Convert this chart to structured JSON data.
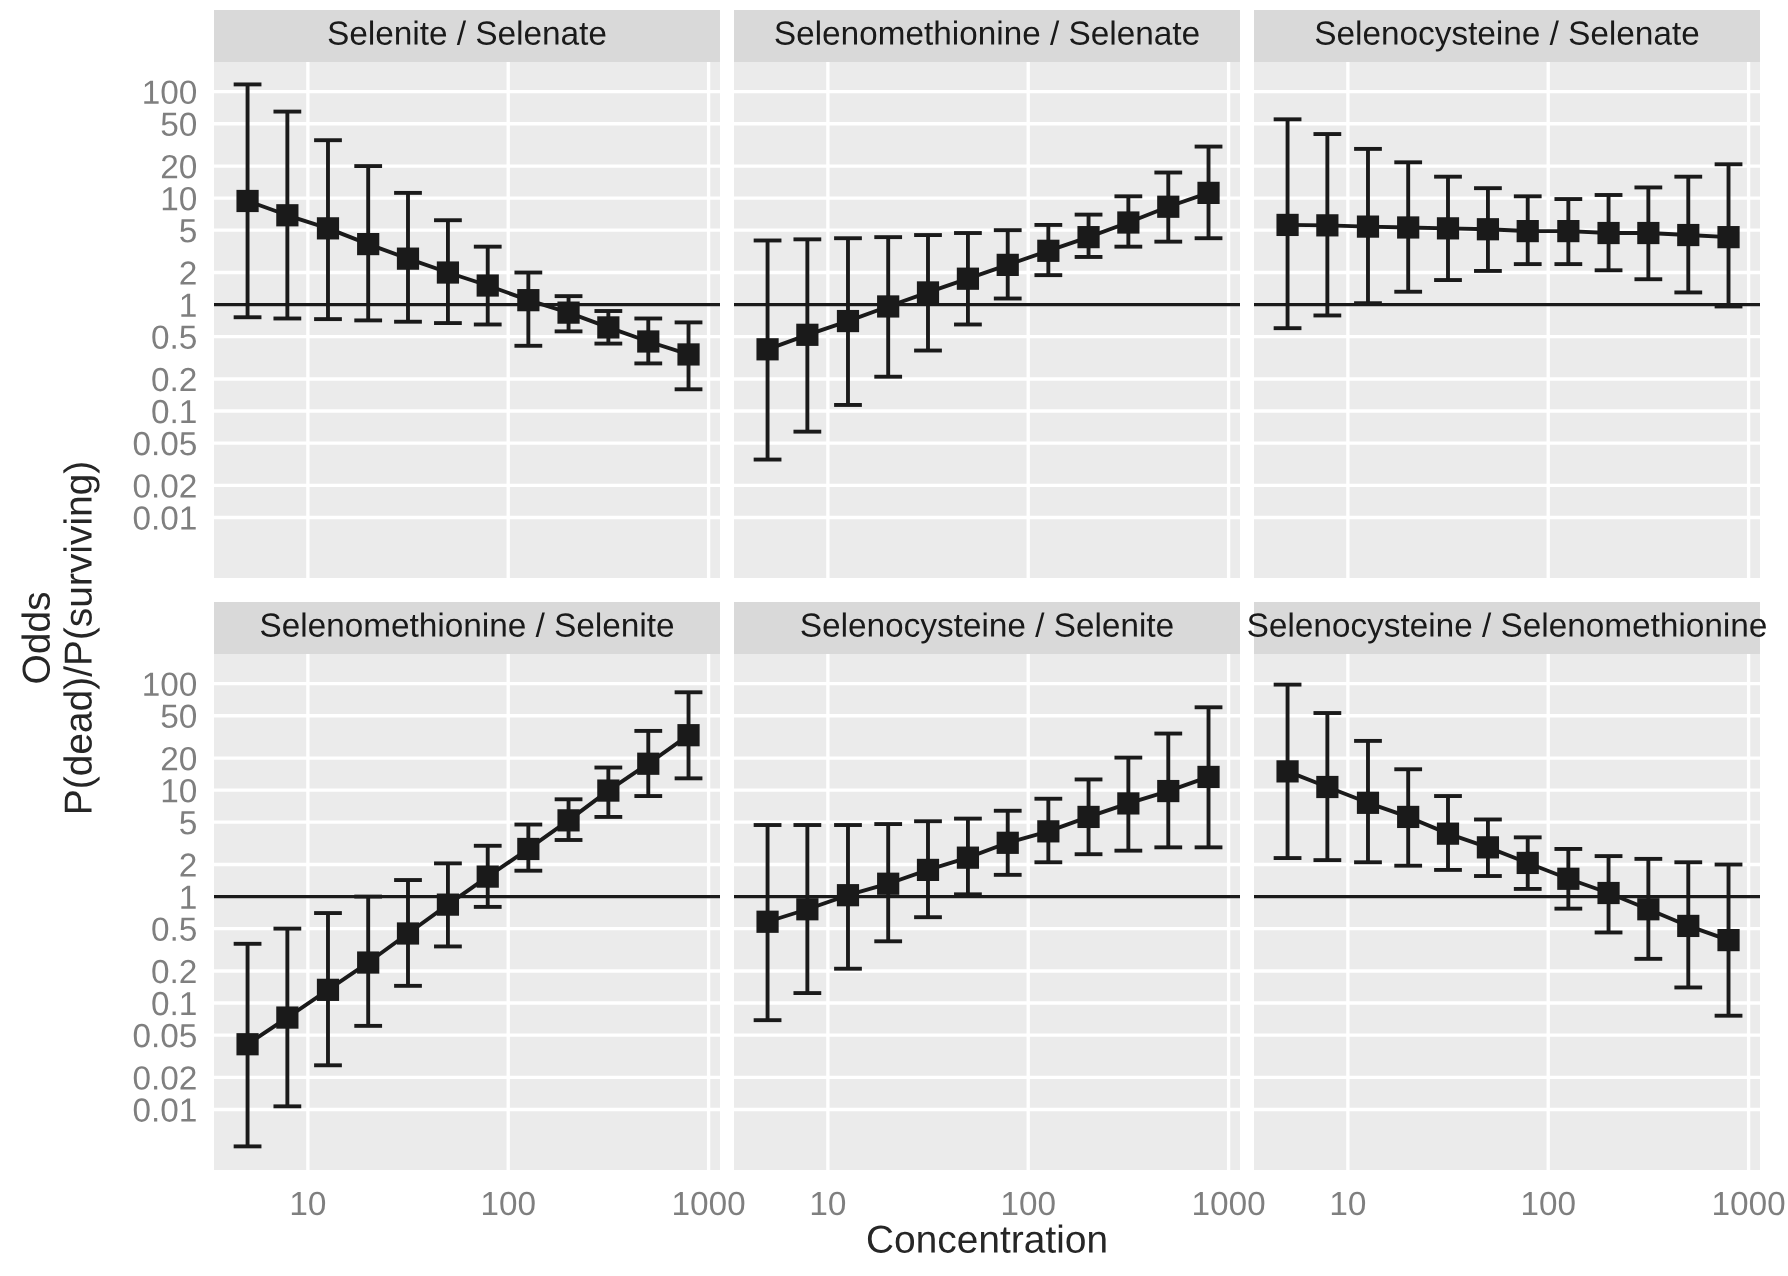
{
  "chart_data": [
    {
      "type": "line",
      "title": "Selenite / Selenate",
      "ylabel": "Odds\nP(dead)/P(surviving)",
      "xlabel": "Concentration",
      "log": "xy",
      "grid": true,
      "marker": "square",
      "line_style": "solid",
      "tick_labels": "y",
      "xlim": [
        3.4,
        1140
      ],
      "ylim": [
        0.0027,
        190
      ],
      "xticks": [
        10,
        100,
        1000
      ],
      "yticks": [
        0.01,
        0.02,
        0.05,
        0.1,
        0.2,
        0.5,
        1,
        2,
        5,
        10,
        20,
        50,
        100
      ],
      "x": [
        5,
        7.9,
        12.6,
        20,
        31.6,
        50,
        79,
        126,
        200,
        316,
        500,
        794
      ],
      "series": [
        {
          "color": "#1a1a1a",
          "values": [
            9.4,
            6.9,
            5.2,
            3.7,
            2.7,
            2.0,
            1.51,
            1.1,
            0.84,
            0.61,
            0.45,
            0.34
          ],
          "errors": [
            [
              0.76,
              117
            ],
            [
              0.74,
              65
            ],
            [
              0.73,
              35
            ],
            [
              0.71,
              20
            ],
            [
              0.69,
              11.2
            ],
            [
              0.67,
              6.2
            ],
            [
              0.65,
              3.5
            ],
            [
              0.41,
              2.0
            ],
            [
              0.56,
              1.2
            ],
            [
              0.43,
              0.87
            ],
            [
              0.28,
              0.74
            ],
            [
              0.16,
              0.68
            ]
          ]
        }
      ],
      "ref_lines": [
        {
          "axis": "y",
          "value": 1,
          "color": "#1a1a1a"
        }
      ]
    },
    {
      "type": "line",
      "title": "Selenomethionine / Selenate",
      "log": "xy",
      "grid": true,
      "marker": "square",
      "line_style": "solid",
      "tick_labels": false,
      "xlim": [
        3.4,
        1140
      ],
      "ylim": [
        0.0027,
        190
      ],
      "xticks": [
        10,
        100,
        1000
      ],
      "yticks": [
        0.01,
        0.02,
        0.05,
        0.1,
        0.2,
        0.5,
        1,
        2,
        5,
        10,
        20,
        50,
        100
      ],
      "x": [
        5,
        7.9,
        12.6,
        20,
        31.6,
        50,
        79,
        126,
        200,
        316,
        500,
        794
      ],
      "series": [
        {
          "color": "#1a1a1a",
          "values": [
            0.38,
            0.52,
            0.7,
            0.96,
            1.3,
            1.75,
            2.36,
            3.2,
            4.3,
            5.9,
            8.3,
            11.2
          ],
          "errors": [
            [
              0.035,
              4.0
            ],
            [
              0.064,
              4.1
            ],
            [
              0.114,
              4.2
            ],
            [
              0.21,
              4.3
            ],
            [
              0.37,
              4.5
            ],
            [
              0.65,
              4.7
            ],
            [
              1.14,
              5.0
            ],
            [
              1.89,
              5.6
            ],
            [
              2.8,
              7.0
            ],
            [
              3.5,
              10.4
            ],
            [
              3.9,
              17.4
            ],
            [
              4.2,
              30.5
            ]
          ]
        }
      ],
      "ref_lines": [
        {
          "axis": "y",
          "value": 1,
          "color": "#1a1a1a"
        }
      ]
    },
    {
      "type": "line",
      "title": "Selenocysteine / Selenate",
      "log": "xy",
      "grid": true,
      "marker": "square",
      "line_style": "solid",
      "tick_labels": false,
      "xlim": [
        3.4,
        1140
      ],
      "ylim": [
        0.0027,
        190
      ],
      "xticks": [
        10,
        100,
        1000
      ],
      "yticks": [
        0.01,
        0.02,
        0.05,
        0.1,
        0.2,
        0.5,
        1,
        2,
        5,
        10,
        20,
        50,
        100
      ],
      "x": [
        5,
        7.9,
        12.6,
        20,
        31.6,
        50,
        79,
        126,
        200,
        316,
        500,
        794
      ],
      "series": [
        {
          "color": "#1a1a1a",
          "values": [
            5.6,
            5.55,
            5.4,
            5.3,
            5.2,
            5.1,
            4.9,
            4.9,
            4.7,
            4.7,
            4.5,
            4.3
          ],
          "errors": [
            [
              0.6,
              55
            ],
            [
              0.79,
              40
            ],
            [
              1.03,
              29
            ],
            [
              1.32,
              21.7
            ],
            [
              1.7,
              15.9
            ],
            [
              2.07,
              12.4
            ],
            [
              2.4,
              10.4
            ],
            [
              2.4,
              9.8
            ],
            [
              2.1,
              10.7
            ],
            [
              1.73,
              12.6
            ],
            [
              1.3,
              15.9
            ],
            [
              0.96,
              20.8
            ]
          ]
        }
      ],
      "ref_lines": [
        {
          "axis": "y",
          "value": 1,
          "color": "#1a1a1a"
        }
      ]
    },
    {
      "type": "line",
      "title": "Selenomethionine / Selenite",
      "log": "xy",
      "grid": true,
      "marker": "square",
      "line_style": "solid",
      "xlim": [
        3.4,
        1140
      ],
      "ylim": [
        0.0027,
        190
      ],
      "xticks": [
        10,
        100,
        1000
      ],
      "yticks": [
        0.01,
        0.02,
        0.05,
        0.1,
        0.2,
        0.5,
        1,
        2,
        5,
        10,
        20,
        50,
        100
      ],
      "x": [
        5,
        7.9,
        12.6,
        20,
        31.6,
        50,
        79,
        126,
        200,
        316,
        500,
        794
      ],
      "series": [
        {
          "color": "#1a1a1a",
          "values": [
            0.041,
            0.073,
            0.133,
            0.24,
            0.45,
            0.84,
            1.54,
            2.8,
            5.2,
            9.9,
            17.7,
            32.8
          ],
          "errors": [
            [
              0.0045,
              0.36
            ],
            [
              0.0107,
              0.5
            ],
            [
              0.026,
              0.7
            ],
            [
              0.061,
              1.0
            ],
            [
              0.145,
              1.43
            ],
            [
              0.34,
              2.05
            ],
            [
              0.8,
              3.0
            ],
            [
              1.75,
              4.75
            ],
            [
              3.4,
              8.2
            ],
            [
              5.6,
              16.3
            ],
            [
              8.8,
              36
            ],
            [
              12.9,
              83
            ]
          ]
        }
      ],
      "ref_lines": [
        {
          "axis": "y",
          "value": 1,
          "color": "#1a1a1a"
        }
      ]
    },
    {
      "type": "line",
      "title": "Selenocysteine / Selenite",
      "log": "xy",
      "grid": true,
      "marker": "square",
      "line_style": "solid",
      "tick_labels": "x",
      "xlim": [
        3.4,
        1140
      ],
      "ylim": [
        0.0027,
        190
      ],
      "xticks": [
        10,
        100,
        1000
      ],
      "yticks": [
        0.01,
        0.02,
        0.05,
        0.1,
        0.2,
        0.5,
        1,
        2,
        5,
        10,
        20,
        50,
        100
      ],
      "x": [
        5,
        7.9,
        12.6,
        20,
        31.6,
        50,
        79,
        126,
        200,
        316,
        500,
        794
      ],
      "series": [
        {
          "color": "#1a1a1a",
          "values": [
            0.58,
            0.76,
            1.03,
            1.32,
            1.78,
            2.32,
            3.2,
            4.1,
            5.6,
            7.5,
            9.8,
            13.3
          ],
          "errors": [
            [
              0.069,
              4.7
            ],
            [
              0.124,
              4.7
            ],
            [
              0.21,
              4.7
            ],
            [
              0.38,
              4.8
            ],
            [
              0.64,
              5.1
            ],
            [
              1.05,
              5.4
            ],
            [
              1.6,
              6.4
            ],
            [
              2.1,
              8.3
            ],
            [
              2.5,
              12.6
            ],
            [
              2.7,
              20.2
            ],
            [
              2.9,
              34
            ],
            [
              2.9,
              60
            ]
          ]
        }
      ],
      "ref_lines": [
        {
          "axis": "y",
          "value": 1,
          "color": "#1a1a1a"
        }
      ]
    },
    {
      "type": "line",
      "title": "Selenocysteine / Selenomethionine",
      "log": "xy",
      "grid": true,
      "marker": "square",
      "line_style": "solid",
      "tick_labels": "x",
      "xlim": [
        3.4,
        1140
      ],
      "ylim": [
        0.0027,
        190
      ],
      "xticks": [
        10,
        100,
        1000
      ],
      "yticks": [
        0.01,
        0.02,
        0.05,
        0.1,
        0.2,
        0.5,
        1,
        2,
        5,
        10,
        20,
        50,
        100
      ],
      "x": [
        5,
        7.9,
        12.6,
        20,
        31.6,
        50,
        79,
        126,
        200,
        316,
        500,
        794
      ],
      "series": [
        {
          "color": "#1a1a1a",
          "values": [
            15,
            10.7,
            7.6,
            5.6,
            3.9,
            2.9,
            2.07,
            1.47,
            1.08,
            0.76,
            0.53,
            0.39
          ],
          "errors": [
            [
              2.3,
              98
            ],
            [
              2.2,
              53
            ],
            [
              2.1,
              29
            ],
            [
              1.95,
              15.7
            ],
            [
              1.78,
              8.8
            ],
            [
              1.56,
              5.3
            ],
            [
              1.18,
              3.6
            ],
            [
              0.77,
              2.8
            ],
            [
              0.46,
              2.4
            ],
            [
              0.26,
              2.26
            ],
            [
              0.14,
              2.1
            ],
            [
              0.076,
              2.0
            ]
          ]
        }
      ],
      "ref_lines": [
        {
          "axis": "y",
          "value": 1,
          "color": "#1a1a1a"
        }
      ]
    }
  ]
}
